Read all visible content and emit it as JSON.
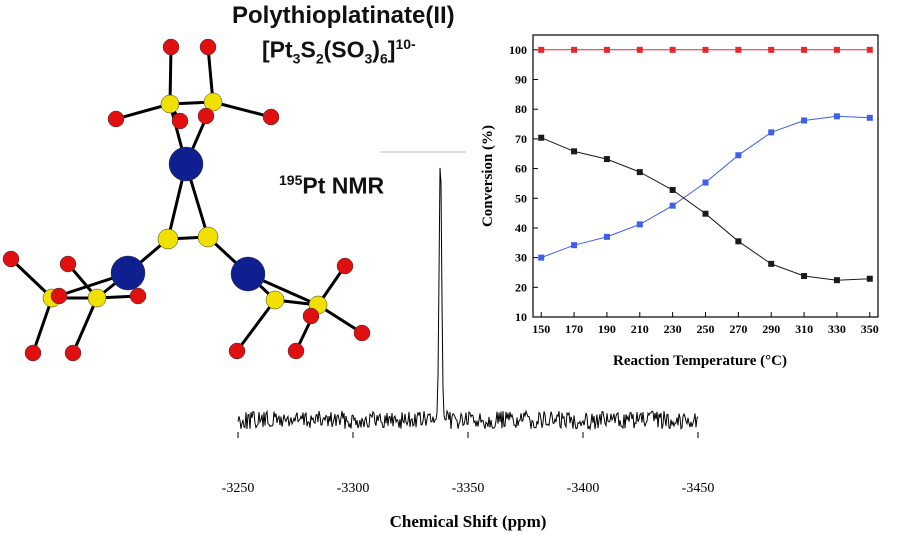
{
  "labels": {
    "title_line1": "Polythioplatinate(II)",
    "formula": {
      "open": "[Pt",
      "s1": "3",
      "mid1": "S",
      "s2": "2",
      "mid2": "(SO",
      "s3": "3",
      "mid3": ")",
      "s4": "6",
      "close": "]",
      "charge": "10-"
    },
    "nmr": {
      "isotope": "195",
      "text": "Pt NMR"
    }
  },
  "colors": {
    "series_red": "#e8282b",
    "series_blue": "#3f5fe8",
    "series_black": "#1a1a1a",
    "atom_pt": "#0f1f8f",
    "atom_s": "#f0e000",
    "atom_o": "#e01010"
  },
  "chart_data": [
    {
      "type": "line",
      "title": "",
      "xlabel": "Reaction Temperature (°C)",
      "ylabel": "Conversion (%)",
      "xlim": [
        145,
        355
      ],
      "ylim": [
        10,
        105
      ],
      "xticks": [
        150,
        170,
        190,
        210,
        230,
        250,
        270,
        290,
        310,
        330,
        350
      ],
      "yticks": [
        10,
        20,
        30,
        40,
        50,
        60,
        70,
        80,
        90,
        100
      ],
      "x": [
        150,
        170,
        190,
        210,
        230,
        250,
        270,
        290,
        310,
        330,
        350
      ],
      "series": [
        {
          "color": "#e8282b",
          "values": [
            100,
            100,
            100,
            100,
            100,
            100,
            100,
            100,
            100,
            100,
            100
          ]
        },
        {
          "color": "#3f5fe8",
          "values": [
            30,
            34.2,
            37,
            41.2,
            47.5,
            55.3,
            64.5,
            72.2,
            76.2,
            77.6,
            77.1
          ]
        },
        {
          "color": "#1a1a1a",
          "values": [
            70.4,
            65.8,
            63.2,
            58.8,
            52.8,
            44.8,
            35.5,
            27.9,
            23.8,
            22.4,
            22.9
          ]
        }
      ],
      "grid": false,
      "legend": "none"
    },
    {
      "type": "line",
      "title": "",
      "xlabel": "Chemical Shift (ppm)",
      "ylabel": "",
      "xlim": [
        -3250,
        -3450
      ],
      "xticks": [
        -3250,
        -3300,
        -3350,
        -3400,
        -3450
      ],
      "x_reversed": true,
      "peak_position": -3338,
      "series": [
        {
          "color": "#000000"
        }
      ]
    }
  ]
}
